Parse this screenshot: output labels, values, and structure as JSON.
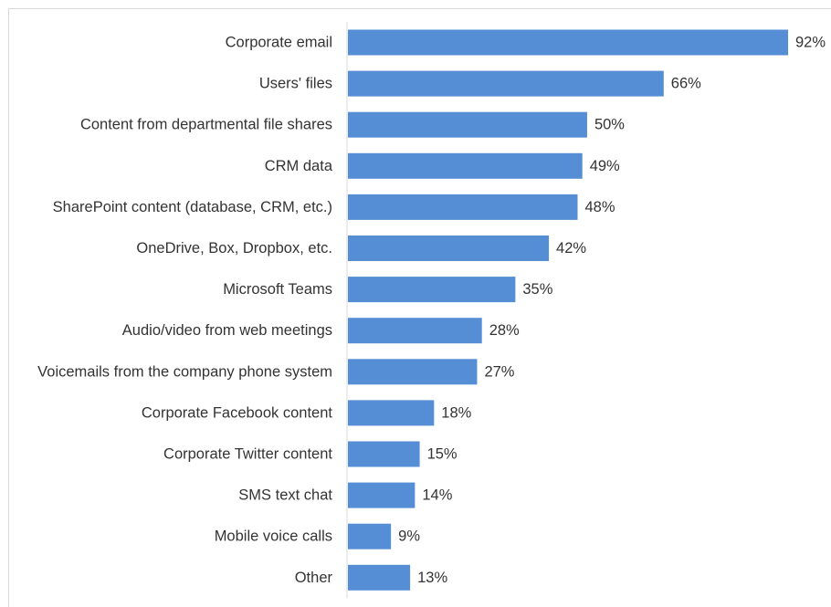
{
  "chart_data": {
    "type": "bar",
    "orientation": "horizontal",
    "title": "",
    "xlabel": "",
    "ylabel": "",
    "xlim": [
      0,
      92
    ],
    "grid": false,
    "legend": "none",
    "bar_color": "#558ED5",
    "value_suffix": "%",
    "categories": [
      "Corporate email",
      "Users' files",
      "Content from departmental file shares",
      "CRM data",
      "SharePoint content (database, CRM, etc.)",
      "OneDrive, Box, Dropbox, etc.",
      "Microsoft Teams",
      "Audio/video from web meetings",
      "Voicemails from the company phone system",
      "Corporate Facebook content",
      "Corporate Twitter content",
      "SMS text chat",
      "Mobile voice calls",
      "Other"
    ],
    "values": [
      92,
      66,
      50,
      49,
      48,
      42,
      35,
      28,
      27,
      18,
      15,
      14,
      9,
      13
    ],
    "data_labels": [
      "92%",
      "66%",
      "50%",
      "49%",
      "48%",
      "42%",
      "35%",
      "28%",
      "27%",
      "18%",
      "15%",
      "14%",
      "9%",
      "13%"
    ]
  }
}
